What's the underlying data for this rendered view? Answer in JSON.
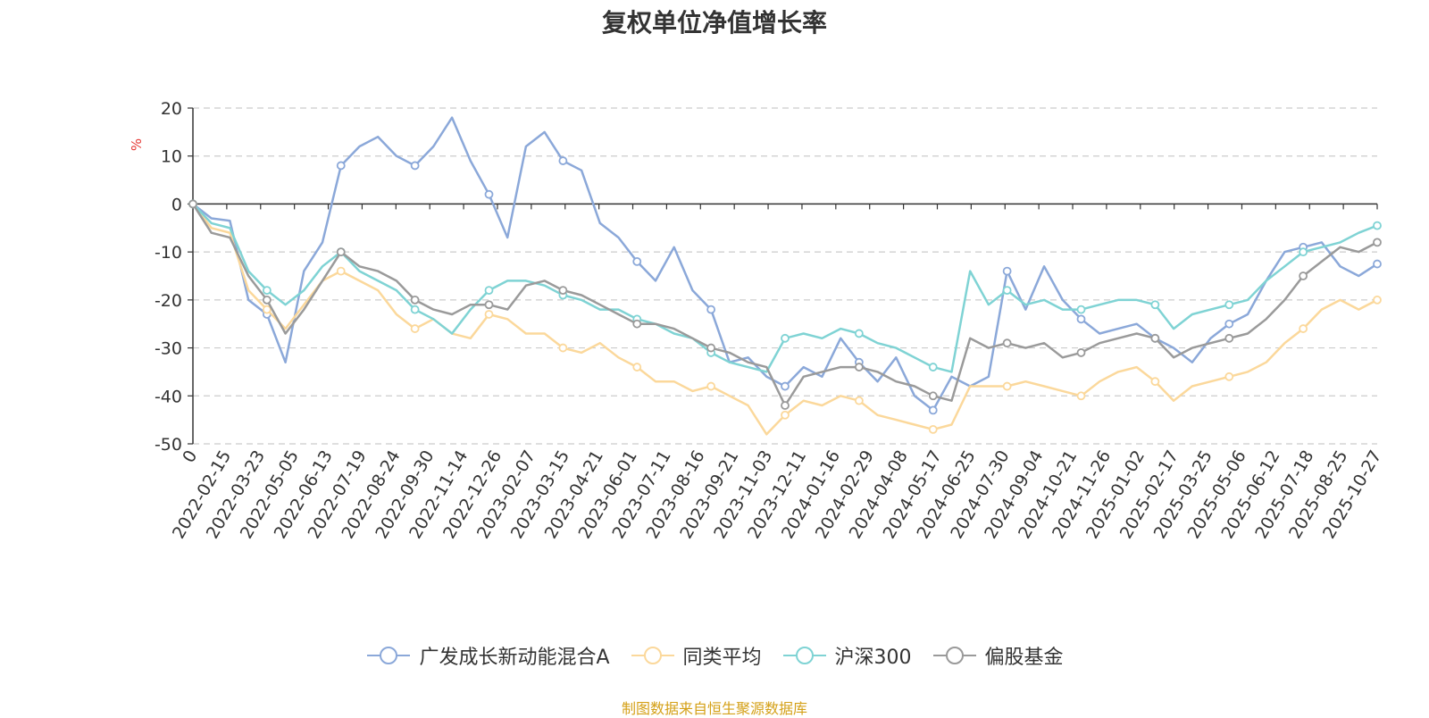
{
  "chart_data": {
    "type": "line",
    "title": "复权单位净值增长率",
    "ylabel": "%",
    "ylim": [
      -50,
      20
    ],
    "yticks": [
      20,
      10,
      0,
      -10,
      -20,
      -30,
      -40,
      -50
    ],
    "grid": true,
    "legend_position": "bottom",
    "x_ticks": [
      "0",
      "2022-02-15",
      "2022-03-23",
      "2022-05-05",
      "2022-06-13",
      "2022-07-19",
      "2022-08-24",
      "2022-09-30",
      "2022-11-14",
      "2022-12-26",
      "2023-02-07",
      "2023-03-15",
      "2023-04-21",
      "2023-06-01",
      "2023-07-11",
      "2023-08-16",
      "2023-09-21",
      "2023-11-03",
      "2023-12-11",
      "2024-01-16",
      "2024-02-29",
      "2024-04-08",
      "2024-05-17",
      "2024-06-25",
      "2024-07-30",
      "2024-09-04",
      "2024-10-21",
      "2024-11-26",
      "2025-01-02",
      "2025-02-17",
      "2025-03-25",
      "2025-05-06",
      "2025-06-12",
      "2025-07-18",
      "2025-08-25",
      "2025-10-27"
    ],
    "series": [
      {
        "name": "广发成长新动能混合A",
        "color": "#8ba8d9",
        "values": [
          0,
          -3,
          -3.5,
          -20,
          -23,
          -33,
          -14,
          -8,
          8,
          12,
          14,
          10,
          8,
          12,
          18,
          9,
          2,
          -7,
          12,
          15,
          9,
          7,
          -4,
          -7,
          -12,
          -16,
          -9,
          -18,
          -22,
          -33,
          -32,
          -36,
          -38,
          -34,
          -36,
          -28,
          -33,
          -37,
          -32,
          -40,
          -43,
          -36,
          -38,
          -36,
          -14,
          -22,
          -13,
          -20,
          -24,
          -27,
          -26,
          -25,
          -28,
          -30,
          -33,
          -28,
          -25,
          -23,
          -16,
          -10,
          -9,
          -8,
          -13,
          -15,
          -12.5
        ]
      },
      {
        "name": "同类平均",
        "color": "#fbd89b",
        "values": [
          0,
          -5,
          -6,
          -18,
          -22,
          -26,
          -21,
          -16,
          -14,
          -16,
          -18,
          -23,
          -26,
          -24,
          -27,
          -28,
          -23,
          -24,
          -27,
          -27,
          -30,
          -31,
          -29,
          -32,
          -34,
          -37,
          -37,
          -39,
          -38,
          -40,
          -42,
          -48,
          -44,
          -41,
          -42,
          -40,
          -41,
          -44,
          -45,
          -46,
          -47,
          -46,
          -38,
          -38,
          -38,
          -37,
          -38,
          -39,
          -40,
          -37,
          -35,
          -34,
          -37,
          -41,
          -38,
          -37,
          -36,
          -35,
          -33,
          -29,
          -26,
          -22,
          -20,
          -22,
          -20
        ]
      },
      {
        "name": "沪深300",
        "color": "#7fd3d4",
        "values": [
          0,
          -4,
          -5,
          -14,
          -18,
          -21,
          -18,
          -13,
          -10,
          -14,
          -16,
          -18,
          -22,
          -24,
          -27,
          -22,
          -18,
          -16,
          -16,
          -17,
          -19,
          -20,
          -22,
          -22,
          -24,
          -25,
          -27,
          -28,
          -31,
          -33,
          -34,
          -35,
          -28,
          -27,
          -28,
          -26,
          -27,
          -29,
          -30,
          -32,
          -34,
          -35,
          -14,
          -21,
          -18,
          -21,
          -20,
          -22,
          -22,
          -21,
          -20,
          -20,
          -21,
          -26,
          -23,
          -22,
          -21,
          -20,
          -16,
          -13,
          -10,
          -9,
          -8,
          -6,
          -4.5
        ]
      },
      {
        "name": "偏股基金",
        "color": "#9a9a9a",
        "values": [
          0,
          -6,
          -7,
          -15,
          -20,
          -27,
          -22,
          -16,
          -10,
          -13,
          -14,
          -16,
          -20,
          -22,
          -23,
          -21,
          -21,
          -22,
          -17,
          -16,
          -18,
          -19,
          -21,
          -23,
          -25,
          -25,
          -26,
          -28,
          -30,
          -31,
          -33,
          -34,
          -42,
          -36,
          -35,
          -34,
          -34,
          -35,
          -37,
          -38,
          -40,
          -41,
          -28,
          -30,
          -29,
          -30,
          -29,
          -32,
          -31,
          -29,
          -28,
          -27,
          -28,
          -32,
          -30,
          -29,
          -28,
          -27,
          -24,
          -20,
          -15,
          -12,
          -9,
          -10,
          -8
        ]
      }
    ]
  },
  "legend": {
    "items": [
      "广发成长新动能混合A",
      "同类平均",
      "沪深300",
      "偏股基金"
    ]
  },
  "source_text": "制图数据来自恒生聚源数据库",
  "colors": {
    "title": "#333333",
    "axis": "#333333",
    "grid": "#cccccc",
    "unit_label": "#e53935",
    "source_text": "#d4a017"
  }
}
